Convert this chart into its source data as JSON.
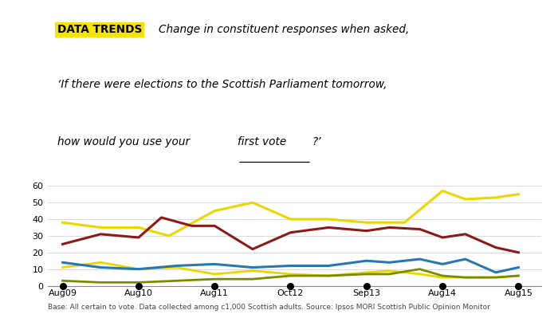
{
  "x_labels": [
    "Aug09",
    "Aug10",
    "Aug11",
    "Oct12",
    "Sep13",
    "Aug14",
    "Aug15"
  ],
  "tick_positions": [
    0,
    1,
    2,
    3,
    4,
    5,
    6
  ],
  "yellow_x": [
    0,
    0.5,
    1,
    1.4,
    2,
    2.5,
    3,
    3.5,
    4,
    4.5,
    5,
    5.3,
    5.7,
    6
  ],
  "yellow_y": [
    38,
    35,
    35,
    30,
    45,
    50,
    40,
    40,
    38,
    38,
    57,
    52,
    53,
    55
  ],
  "red_x": [
    0,
    0.5,
    1,
    1.3,
    1.7,
    2,
    2.5,
    3,
    3.5,
    4,
    4.3,
    4.7,
    5,
    5.3,
    5.7,
    6
  ],
  "red_y": [
    25,
    31,
    29,
    41,
    36,
    36,
    22,
    32,
    35,
    33,
    35,
    34,
    29,
    31,
    23,
    20
  ],
  "blue_x": [
    0,
    0.5,
    1,
    1.5,
    2,
    2.5,
    3,
    3.5,
    4,
    4.3,
    4.7,
    5,
    5.3,
    5.7,
    6
  ],
  "blue_y": [
    14,
    11,
    10,
    12,
    13,
    11,
    12,
    12,
    15,
    14,
    16,
    13,
    16,
    8,
    11
  ],
  "olive_x": [
    0,
    0.5,
    1,
    1.5,
    2,
    2.5,
    3,
    3.5,
    4,
    4.3,
    4.7,
    5,
    5.3,
    5.7,
    6
  ],
  "olive_y": [
    3,
    2,
    2,
    3,
    4,
    4,
    6,
    6,
    7,
    7,
    10,
    6,
    5,
    5,
    6
  ],
  "yellow2_x": [
    0,
    0.5,
    1,
    1.5,
    2,
    2.5,
    3,
    3.5,
    4,
    4.3,
    4.7,
    5,
    5.3,
    5.7,
    6
  ],
  "yellow2_y": [
    11,
    14,
    10,
    11,
    7,
    9,
    7,
    6,
    8,
    9,
    7,
    5,
    5,
    5,
    6
  ],
  "yellow_color": "#e8d800",
  "red_color": "#8b1a1a",
  "blue_color": "#2878b0",
  "olive_color": "#7a8b00",
  "ylim": [
    0,
    60
  ],
  "yticks": [
    0,
    10,
    20,
    30,
    40,
    50,
    60
  ],
  "tag_text": "DATA TRENDS",
  "tag_bg": "#f5e300",
  "line1": "Change in constituent responses when asked,",
  "line2": "‘If there were elections to the Scottish Parliament tomorrow,",
  "line3_pre": "how would you use your ",
  "line3_underline": "first vote",
  "line3_post": "?’",
  "footnote": "Base: All certain to vote. Data collected among c1,000 Scottish adults. Source: Ipsos MORI Scottish Public Opinion Monitor"
}
